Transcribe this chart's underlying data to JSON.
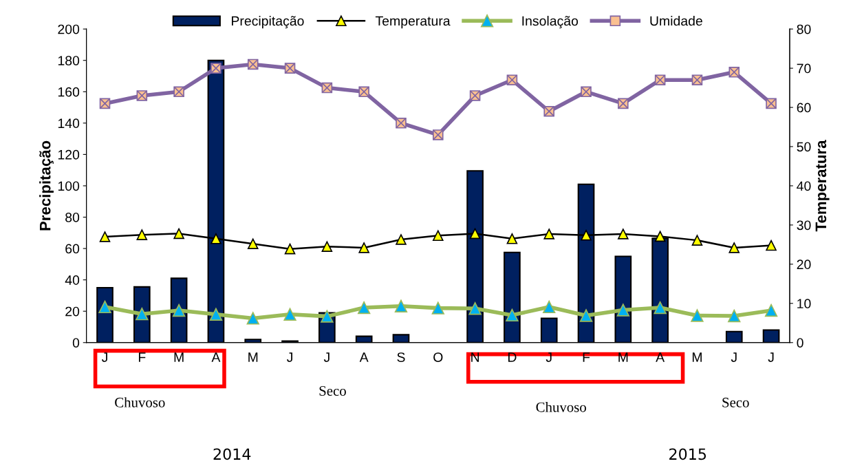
{
  "chart_data": {
    "type": "bar",
    "categories": [
      "J",
      "F",
      "M",
      "A",
      "M",
      "J",
      "J",
      "A",
      "S",
      "O",
      "N",
      "D",
      "J",
      "F",
      "M",
      "A",
      "M",
      "J",
      "J"
    ],
    "ylabel": "Precipitação",
    "y2label": "Temperatura",
    "ylim": [
      0,
      200
    ],
    "yticks": [
      0,
      20,
      40,
      60,
      80,
      100,
      120,
      140,
      160,
      180,
      200
    ],
    "y2lim": [
      0,
      80
    ],
    "y2ticks": [
      0,
      10,
      20,
      30,
      40,
      50,
      60,
      70,
      80
    ],
    "legend": "top",
    "grid": false,
    "annotations": [
      "Chuvoso",
      "Seco",
      "Chuvoso",
      "Seco",
      "2014",
      "2015"
    ],
    "series": [
      {
        "name": "Precipitação",
        "color": "#002060",
        "values": [
          35,
          35.5,
          41,
          180,
          2,
          1,
          19,
          4,
          5,
          null,
          109.5,
          57.5,
          15.5,
          101,
          55,
          66.5,
          null,
          7,
          8
        ]
      },
      {
        "name": "Temperatura",
        "type": "line",
        "axis": "y2",
        "color": "#000000",
        "marker": "triangle",
        "values": [
          27,
          27.5,
          27.8,
          26.5,
          25.2,
          23.9,
          24.5,
          24.2,
          26.3,
          27.3,
          27.8,
          26.5,
          27.7,
          27.4,
          27.7,
          27.1,
          26.1,
          24.2,
          24.8
        ]
      },
      {
        "name": "Insolação",
        "type": "line",
        "axis": "y2",
        "color": "#9bbb59",
        "marker": "triangle",
        "values": [
          9.1,
          7.3,
          8.2,
          7.2,
          6.2,
          7.2,
          6.7,
          8.9,
          9.3,
          8.8,
          8.7,
          7.0,
          9.1,
          6.9,
          8.3,
          8.9,
          6.9,
          6.8,
          8.2
        ]
      },
      {
        "name": "Umidade",
        "type": "line",
        "axis": "y2",
        "color": "#8064a2",
        "marker": "square",
        "values": [
          61,
          63,
          64,
          70,
          71,
          70,
          65,
          64,
          56,
          53,
          63,
          67,
          59,
          64,
          61,
          67,
          67,
          69,
          61
        ]
      }
    ]
  }
}
